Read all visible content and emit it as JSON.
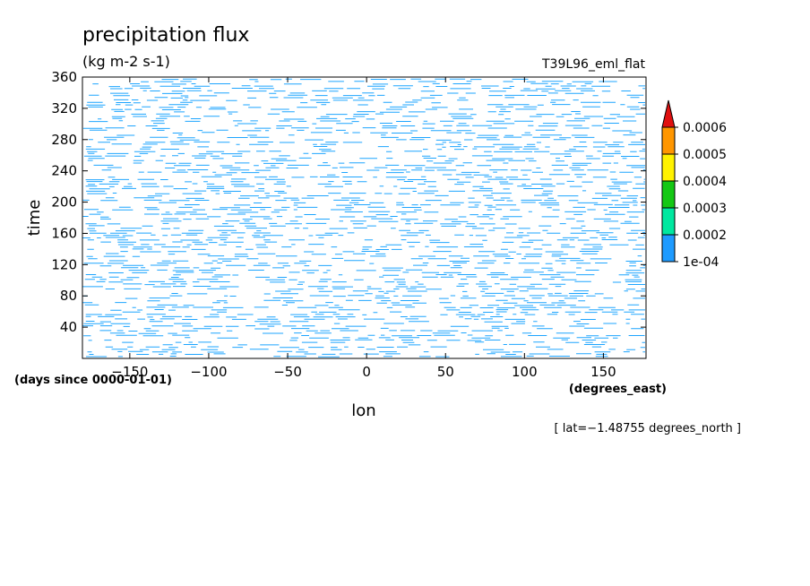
{
  "chart_data": {
    "type": "heatmap",
    "title": "precipitation flux",
    "units": "(kg m-2 s-1)",
    "experiment": "T39L96_eml_flat",
    "xlabel": "lon",
    "xunits": "(degrees_east)",
    "ylabel": "time",
    "yunits": "(days since 0000-01-01)",
    "xlim": [
      -180,
      177
    ],
    "ylim": [
      0,
      360
    ],
    "xticks": [
      -150,
      -100,
      -50,
      0,
      50,
      100,
      150
    ],
    "xtick_labels": [
      "−150",
      "−100",
      "−50",
      "0",
      "50",
      "100",
      "150"
    ],
    "yticks": [
      40,
      80,
      120,
      160,
      200,
      240,
      280,
      320,
      360
    ],
    "ytick_labels": [
      "40",
      "80",
      "120",
      "160",
      "200",
      "240",
      "280",
      "320",
      "360"
    ],
    "footnote": "[ lat=−1.48755 degrees_north ]",
    "colorbar": {
      "levels": [
        0.0001,
        0.0002,
        0.0003,
        0.0004,
        0.0005,
        0.0006
      ],
      "labels": [
        "1e-04",
        "0.0002",
        "0.0003",
        "0.0004",
        "0.0005",
        "0.0006"
      ],
      "colors": [
        "#1e9bff",
        "#00e8a0",
        "#14c814",
        "#fff200",
        "#ff9600"
      ],
      "extend_color": "#e01010",
      "extend": "max"
    },
    "pattern_color": "#1ea5ff",
    "pattern": "dense short zonal streaks of precipitation flux between 1e-04 and 0.0002 throughout the domain"
  }
}
